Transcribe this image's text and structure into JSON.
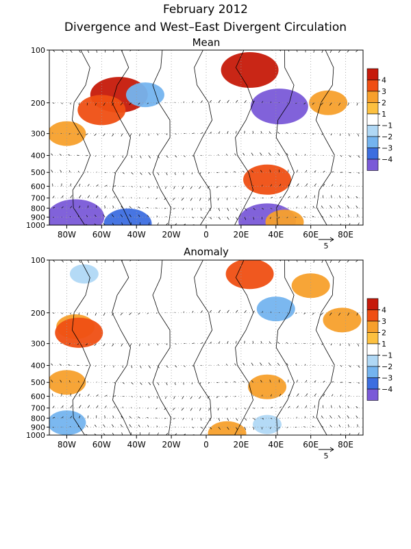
{
  "title": "February 2012",
  "subtitle": "Divergence and West–East Divergent Circulation",
  "chart_data": [
    {
      "type": "heatmap",
      "title": "Mean",
      "x_ticks": [
        "80W",
        "60W",
        "40W",
        "20W",
        "0",
        "20E",
        "40E",
        "60E",
        "80E"
      ],
      "x_values": [
        -80,
        -60,
        -40,
        -20,
        0,
        20,
        40,
        60,
        80
      ],
      "xlim": [
        -90,
        90
      ],
      "y_ticks": [
        "100",
        "200",
        "300",
        "400",
        "500",
        "600",
        "700",
        "800",
        "900",
        "1000"
      ],
      "y_values": [
        100,
        200,
        300,
        400,
        500,
        600,
        700,
        800,
        900,
        1000
      ],
      "ylim": [
        1000,
        100
      ],
      "y_scale": "log",
      "colorbar": {
        "levels": [
          "4",
          "3",
          "2",
          "1",
          "−1",
          "−2",
          "−3",
          "−4"
        ]
      },
      "vector_ref_label": "5",
      "regions": [
        {
          "lon": -50,
          "p": 180,
          "value": 4
        },
        {
          "lon": -60,
          "p": 220,
          "value": 3
        },
        {
          "lon": -80,
          "p": 300,
          "value": 2
        },
        {
          "lon": 25,
          "p": 130,
          "value": 4
        },
        {
          "lon": 70,
          "p": 200,
          "value": 2
        },
        {
          "lon": 42,
          "p": 210,
          "value": -4
        },
        {
          "lon": -35,
          "p": 180,
          "value": -2
        },
        {
          "lon": 35,
          "p": 550,
          "value": 3
        },
        {
          "lon": -75,
          "p": 900,
          "value": -4
        },
        {
          "lon": -45,
          "p": 980,
          "value": -3
        },
        {
          "lon": 35,
          "p": 950,
          "value": -4
        },
        {
          "lon": 45,
          "p": 960,
          "value": 2
        }
      ]
    },
    {
      "type": "heatmap",
      "title": "Anomaly",
      "x_ticks": [
        "80W",
        "60W",
        "40W",
        "20W",
        "0",
        "20E",
        "40E",
        "60E",
        "80E"
      ],
      "x_values": [
        -80,
        -60,
        -40,
        -20,
        0,
        20,
        40,
        60,
        80
      ],
      "xlim": [
        -90,
        90
      ],
      "y_ticks": [
        "100",
        "200",
        "300",
        "400",
        "500",
        "600",
        "700",
        "800",
        "900",
        "1000"
      ],
      "y_values": [
        100,
        200,
        300,
        400,
        500,
        600,
        700,
        800,
        900,
        1000
      ],
      "ylim": [
        1000,
        100
      ],
      "y_scale": "log",
      "colorbar": {
        "levels": [
          "4",
          "3",
          "2",
          "1",
          "−1",
          "−2",
          "−3",
          "−4"
        ]
      },
      "vector_ref_label": "5",
      "regions": [
        {
          "lon": -75,
          "p": 240,
          "value": 2
        },
        {
          "lon": -73,
          "p": 260,
          "value": 3
        },
        {
          "lon": -80,
          "p": 500,
          "value": 2
        },
        {
          "lon": 25,
          "p": 120,
          "value": 3
        },
        {
          "lon": 60,
          "p": 140,
          "value": 2
        },
        {
          "lon": 40,
          "p": 190,
          "value": -2
        },
        {
          "lon": -70,
          "p": 120,
          "value": -1
        },
        {
          "lon": -80,
          "p": 850,
          "value": -2
        },
        {
          "lon": 35,
          "p": 870,
          "value": -1
        },
        {
          "lon": 35,
          "p": 530,
          "value": 2
        },
        {
          "lon": 78,
          "p": 220,
          "value": 2
        },
        {
          "lon": 12,
          "p": 980,
          "value": 2
        }
      ]
    }
  ]
}
